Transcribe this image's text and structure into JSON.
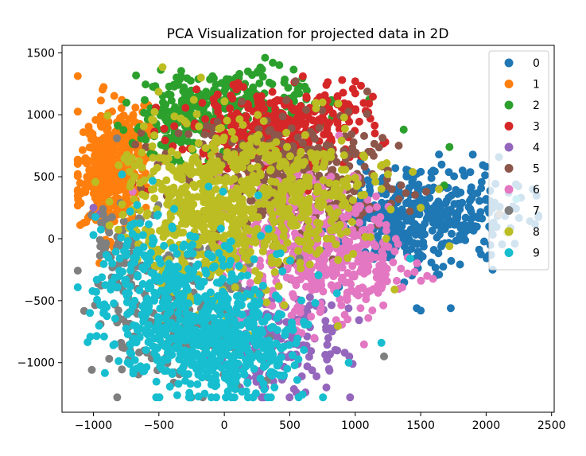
{
  "chart_data": {
    "type": "scatter",
    "title": "PCA Visualization for projected data in 2D",
    "xlabel": "",
    "ylabel": "",
    "xlim": [
      -1240,
      2520
    ],
    "ylim": [
      -1400,
      1560
    ],
    "xticks": [
      -1000,
      -500,
      0,
      500,
      1000,
      1500,
      2000,
      2500
    ],
    "xtick_labels": [
      "−1000",
      "−500",
      "0",
      "500",
      "1000",
      "1500",
      "2000",
      "2500"
    ],
    "yticks": [
      -1000,
      -500,
      0,
      500,
      1000,
      1500
    ],
    "ytick_labels": [
      "−1000",
      "−500",
      "0",
      "500",
      "1000",
      "1500"
    ],
    "grid": false,
    "legend": "upper-right",
    "series": [
      {
        "name": "0",
        "color": "#1f77b4",
        "clusters": [
          {
            "cx": 1400,
            "cy": 150,
            "sx": 270,
            "sy": 200,
            "n": 330
          },
          {
            "cx": 1900,
            "cy": 250,
            "sx": 230,
            "sy": 170,
            "n": 90
          }
        ],
        "points": [
          [
            1470,
            -560
          ],
          [
            1730,
            -560
          ],
          [
            2000,
            580
          ],
          [
            2040,
            80
          ],
          [
            1640,
            680
          ],
          [
            1500,
            -580
          ],
          [
            1820,
            550
          ],
          [
            2050,
            -250
          ]
        ]
      },
      {
        "name": "1",
        "color": "#ff7f0e",
        "clusters": [
          {
            "cx": -860,
            "cy": 520,
            "sx": 120,
            "sy": 250,
            "n": 420
          },
          {
            "cx": -720,
            "cy": 820,
            "sx": 100,
            "sy": 130,
            "n": 60
          }
        ],
        "points": [
          [
            -1070,
            390
          ],
          [
            -1050,
            500
          ],
          [
            -1060,
            420
          ],
          [
            -980,
            150
          ],
          [
            -820,
            940
          ],
          [
            -700,
            980
          ]
        ]
      },
      {
        "name": "2",
        "color": "#2ca02c",
        "clusters": [
          {
            "cx": 100,
            "cy": 1080,
            "sx": 300,
            "sy": 160,
            "n": 260
          },
          {
            "cx": -350,
            "cy": 920,
            "sx": 170,
            "sy": 150,
            "n": 100
          }
        ],
        "points": [
          [
            370,
            1420
          ],
          [
            420,
            1400
          ],
          [
            1370,
            880
          ],
          [
            1720,
            740
          ],
          [
            1680,
            430
          ],
          [
            -450,
            1080
          ],
          [
            180,
            1350
          ],
          [
            250,
            1340
          ]
        ]
      },
      {
        "name": "3",
        "color": "#d62728",
        "clusters": [
          {
            "cx": 350,
            "cy": 870,
            "sx": 320,
            "sy": 160,
            "n": 380
          },
          {
            "cx": 900,
            "cy": 1050,
            "sx": 120,
            "sy": 120,
            "n": 30
          }
        ],
        "points": [
          [
            780,
            1240
          ],
          [
            900,
            1280
          ],
          [
            1000,
            1270
          ],
          [
            600,
            1310
          ],
          [
            1100,
            1020
          ],
          [
            1230,
            780
          ],
          [
            1150,
            850
          ],
          [
            -700,
            450
          ],
          [
            -600,
            380
          ]
        ]
      },
      {
        "name": "4",
        "color": "#9467bd",
        "clusters": [
          {
            "cx": 420,
            "cy": -820,
            "sx": 250,
            "sy": 220,
            "n": 150
          }
        ],
        "points": [
          [
            550,
            -1240
          ],
          [
            620,
            -1240
          ],
          [
            780,
            -1200
          ],
          [
            980,
            -1010
          ],
          [
            800,
            -1050
          ],
          [
            -950,
            200
          ],
          [
            -1000,
            250
          ],
          [
            920,
            -920
          ]
        ]
      },
      {
        "name": "5",
        "color": "#8c564b",
        "clusters": [
          {
            "cx": 400,
            "cy": 450,
            "sx": 350,
            "sy": 280,
            "n": 280
          },
          {
            "cx": 900,
            "cy": 450,
            "sx": 250,
            "sy": 250,
            "n": 80
          }
        ],
        "points": [
          [
            -680,
            760
          ],
          [
            -600,
            740
          ],
          [
            1250,
            550
          ],
          [
            1350,
            430
          ],
          [
            1100,
            700
          ]
        ]
      },
      {
        "name": "6",
        "color": "#e377c2",
        "clusters": [
          {
            "cx": 700,
            "cy": -100,
            "sx": 280,
            "sy": 300,
            "n": 380
          },
          {
            "cx": 1100,
            "cy": -200,
            "sx": 170,
            "sy": 200,
            "n": 70
          }
        ],
        "points": [
          [
            1100,
            -640
          ],
          [
            1400,
            -280
          ],
          [
            1550,
            -300
          ],
          [
            -700,
            380
          ],
          [
            1200,
            -400
          ],
          [
            1040,
            -560
          ]
        ]
      },
      {
        "name": "7",
        "color": "#7f7f7f",
        "clusters": [
          {
            "cx": -400,
            "cy": -600,
            "sx": 320,
            "sy": 330,
            "n": 200
          },
          {
            "cx": -800,
            "cy": -100,
            "sx": 120,
            "sy": 240,
            "n": 50
          }
        ],
        "points": [
          [
            -950,
            -10
          ],
          [
            -920,
            -100
          ],
          [
            2100,
            200
          ],
          [
            1220,
            -950
          ],
          [
            -880,
            50
          ],
          [
            -820,
            810
          ]
        ]
      },
      {
        "name": "8",
        "color": "#bcbd22",
        "clusters": [
          {
            "cx": -100,
            "cy": 250,
            "sx": 360,
            "sy": 340,
            "n": 620
          },
          {
            "cx": 650,
            "cy": 350,
            "sx": 260,
            "sy": 260,
            "n": 200
          }
        ],
        "points": [
          [
            750,
            1100
          ],
          [
            870,
            1090
          ],
          [
            1070,
            660
          ],
          [
            1240,
            610
          ],
          [
            1640,
            400
          ],
          [
            2160,
            50
          ],
          [
            1720,
            -60
          ],
          [
            1300,
            -410
          ],
          [
            700,
            1050
          ],
          [
            1250,
            520
          ],
          [
            1500,
            250
          ]
        ]
      },
      {
        "name": "9",
        "color": "#17becf",
        "clusters": [
          {
            "cx": -250,
            "cy": -650,
            "sx": 330,
            "sy": 300,
            "n": 520
          },
          {
            "cx": 150,
            "cy": -950,
            "sx": 230,
            "sy": 180,
            "n": 180
          },
          {
            "cx": -700,
            "cy": -200,
            "sx": 140,
            "sy": 250,
            "n": 80
          }
        ],
        "points": [
          [
            -800,
            -300
          ],
          [
            -1000,
            30
          ],
          [
            -720,
            220
          ],
          [
            -10,
            380
          ],
          [
            260,
            350
          ],
          [
            860,
            -440
          ],
          [
            950,
            -1000
          ],
          [
            1200,
            -840
          ],
          [
            1420,
            -160
          ],
          [
            2230,
            320
          ],
          [
            -150,
            -1250
          ],
          [
            -70,
            -1190
          ],
          [
            -120,
            420
          ]
        ]
      }
    ]
  }
}
